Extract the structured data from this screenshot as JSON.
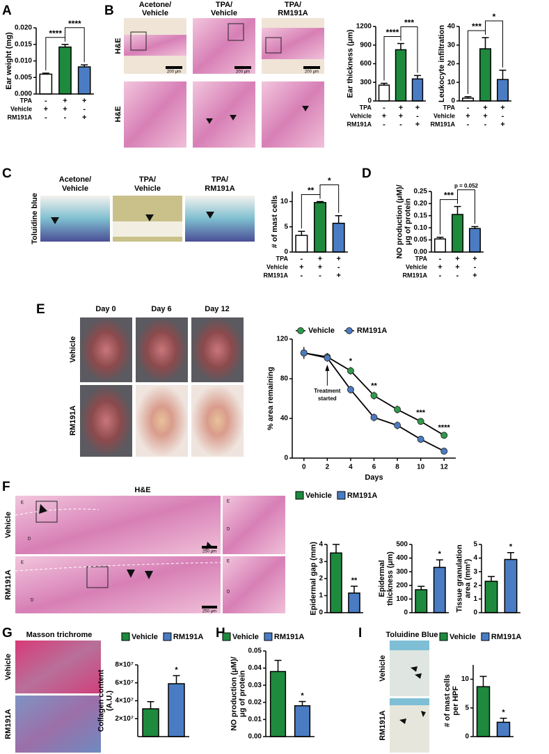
{
  "figure": {
    "panel_letters": [
      "A",
      "B",
      "C",
      "D",
      "E",
      "F",
      "G",
      "H",
      "I"
    ],
    "image_panels": {
      "B": {
        "columns": [
          [
            "Acetone/",
            "Vehicle"
          ],
          [
            "TPA/",
            "Vehicle"
          ],
          [
            "TPA/",
            "RM191A"
          ]
        ],
        "rows": [
          "H&E",
          "H&E"
        ],
        "scale_bar": "200 μm"
      },
      "C": {
        "columns": [
          [
            "Acetone/",
            "Vehicle"
          ],
          [
            "TPA/",
            "Vehicle"
          ],
          [
            "TPA/",
            "RM191A"
          ]
        ],
        "rows": [
          "Toluidine blue"
        ]
      },
      "E": {
        "columns": [
          "Day 0",
          "Day 6",
          "Day 12"
        ],
        "rows": [
          "Vehicle",
          "RM191A"
        ]
      },
      "F": {
        "title": "H&E",
        "rows": [
          "Vehicle",
          "RM191A"
        ],
        "scale_bar": "250 μm",
        "layer_labels": [
          "E",
          "D"
        ]
      },
      "G": {
        "title": "Masson trichrome",
        "rows": [
          "Vehicle",
          "RM191A"
        ]
      },
      "I": {
        "title": "Toluidine Blue",
        "rows": [
          "Vehicle",
          "RM191A"
        ]
      }
    }
  },
  "chart_data": [
    {
      "type": "bar",
      "ylabel": [
        "Ear weight (mg)"
      ],
      "ylim": [
        0,
        0.02
      ],
      "yticks": [
        {
          "value": 0,
          "label": "0.000"
        },
        {
          "value": 0.005,
          "label": "0.005"
        },
        {
          "value": 0.01,
          "label": "0.010"
        },
        {
          "value": 0.015,
          "label": "0.015"
        },
        {
          "value": 0.02,
          "label": "0.020"
        }
      ],
      "values": [
        0.006,
        0.0142,
        0.0082
      ],
      "errors": [
        0.0003,
        0.0008,
        0.0006
      ],
      "colors": [
        "#ffffff",
        "#1e8a3e",
        "#4a7cc4"
      ],
      "annotations": [
        "****",
        "****"
      ],
      "conditions": [
        {
          "label": "TPA",
          "signs": [
            "-",
            "+",
            "+"
          ]
        },
        {
          "label": "Vehicle",
          "signs": [
            "+",
            "+",
            "-"
          ]
        },
        {
          "label": "RM191A",
          "signs": [
            "-",
            "-",
            "+"
          ]
        }
      ]
    },
    {
      "type": "bar",
      "ylabel": [
        "Ear thickness (μm)"
      ],
      "ylim": [
        0,
        1200
      ],
      "yticks": [
        0,
        300,
        600,
        900,
        1200
      ],
      "values": [
        255,
        825,
        355
      ],
      "errors": [
        30,
        100,
        55
      ],
      "colors": [
        "#ffffff",
        "#1e8a3e",
        "#4a7cc4"
      ],
      "annotations": [
        "****",
        "***"
      ],
      "conditions": [
        {
          "label": "TPA",
          "signs": [
            "-",
            "+",
            "+"
          ]
        },
        {
          "label": "Vehicle",
          "signs": [
            "+",
            "+",
            "-"
          ]
        },
        {
          "label": "RM191A",
          "signs": [
            "-",
            "-",
            "+"
          ]
        }
      ]
    },
    {
      "type": "bar",
      "ylabel": [
        "Leukocyte infiltration"
      ],
      "ylim": [
        0,
        40
      ],
      "yticks": [
        0,
        10,
        20,
        30,
        40
      ],
      "values": [
        1.5,
        28,
        11.5
      ],
      "errors": [
        0.8,
        6,
        5
      ],
      "colors": [
        "#ffffff",
        "#1e8a3e",
        "#4a7cc4"
      ],
      "annotations": [
        "***",
        "*"
      ],
      "conditions": [
        {
          "label": "TPA",
          "signs": [
            "-",
            "+",
            "+"
          ]
        },
        {
          "label": "Vehicle",
          "signs": [
            "+",
            "+",
            "-"
          ]
        },
        {
          "label": "RM191A",
          "signs": [
            "-",
            "-",
            "+"
          ]
        }
      ]
    },
    {
      "type": "bar",
      "ylabel": [
        "# of mast cells"
      ],
      "ylim": [
        0,
        12
      ],
      "yticks": [
        0,
        5,
        10
      ],
      "values": [
        3.3,
        9.8,
        5.7
      ],
      "errors": [
        0.8,
        0.2,
        1.5
      ],
      "colors": [
        "#ffffff",
        "#1e8a3e",
        "#4a7cc4"
      ],
      "annotations": [
        "**",
        "*"
      ],
      "conditions": [
        {
          "label": "TPA",
          "signs": [
            "-",
            "+",
            "+"
          ]
        },
        {
          "label": "Vehicle",
          "signs": [
            "+",
            "+",
            "-"
          ]
        },
        {
          "label": "RM191A",
          "signs": [
            "-",
            "-",
            "+"
          ]
        }
      ]
    },
    {
      "type": "bar",
      "ylabel": [
        "NO production (μM)/",
        "μg of protein"
      ],
      "ylim": [
        0,
        0.25
      ],
      "yticks": [
        {
          "value": 0,
          "label": "0.00"
        },
        {
          "value": 0.05,
          "label": "0.05"
        },
        {
          "value": 0.1,
          "label": "0.10"
        },
        {
          "value": 0.15,
          "label": "0.15"
        },
        {
          "value": 0.2,
          "label": "0.20"
        },
        {
          "value": 0.25,
          "label": "0.25"
        }
      ],
      "values": [
        0.054,
        0.155,
        0.097
      ],
      "errors": [
        0.007,
        0.033,
        0.008
      ],
      "colors": [
        "#ffffff",
        "#1e8a3e",
        "#4a7cc4"
      ],
      "annotations": [
        "***",
        "p = 0.052"
      ],
      "conditions": [
        {
          "label": "TPA",
          "signs": [
            "-",
            "+",
            "+"
          ]
        },
        {
          "label": "Vehicle",
          "signs": [
            "+",
            "+",
            "-"
          ]
        },
        {
          "label": "RM191A",
          "signs": [
            "-",
            "-",
            "+"
          ]
        }
      ]
    },
    {
      "type": "line",
      "xlabel": "Days",
      "ylabel": [
        "% area remaining"
      ],
      "x": [
        0,
        2,
        4,
        6,
        8,
        10,
        12
      ],
      "xlim": [
        -1,
        13
      ],
      "xticks": [
        0,
        2,
        4,
        6,
        8,
        10,
        12
      ],
      "ylim": [
        0,
        120
      ],
      "yticks": [
        0,
        40,
        80,
        120
      ],
      "series": [
        {
          "name": "Vehicle",
          "color": "#2f9a4c",
          "values": [
            106,
            102,
            88,
            63,
            49,
            37,
            23
          ],
          "errors": [
            6,
            4,
            4,
            4,
            4,
            3,
            2
          ]
        },
        {
          "name": "RM191A",
          "color": "#4a7cc4",
          "values": [
            106,
            101,
            69,
            41,
            33,
            19,
            7
          ],
          "errors": [
            6,
            4,
            4,
            4,
            4,
            3,
            2
          ]
        }
      ],
      "annotations": [
        {
          "x": 4,
          "text": "*"
        },
        {
          "x": 6,
          "text": "**"
        },
        {
          "x": 10,
          "text": "***"
        },
        {
          "x": 12,
          "text": "****"
        }
      ],
      "callout": {
        "x": 2,
        "lines": [
          "Treatment",
          "started"
        ]
      }
    },
    {
      "type": "bar",
      "ylabel": [
        "Epidermal gap (mm)"
      ],
      "ylim": [
        0,
        4
      ],
      "yticks": [
        0,
        1,
        2,
        3,
        4
      ],
      "values": [
        3.5,
        1.15
      ],
      "errors": [
        0.5,
        0.4
      ],
      "colors": [
        "#1e8a3e",
        "#4a7cc4"
      ],
      "annotations": [
        "**"
      ],
      "legend": [
        {
          "name": "Vehicle",
          "color": "#1e8a3e"
        },
        {
          "name": "RM191A",
          "color": "#4a7cc4"
        }
      ]
    },
    {
      "type": "bar",
      "ylabel": [
        "Epidermal",
        "thickness (μm)"
      ],
      "ylim": [
        0,
        500
      ],
      "yticks": [
        0,
        100,
        200,
        300,
        400,
        500
      ],
      "values": [
        168,
        332
      ],
      "errors": [
        25,
        55
      ],
      "colors": [
        "#1e8a3e",
        "#4a7cc4"
      ],
      "annotations": [
        "*"
      ]
    },
    {
      "type": "bar",
      "ylabel": [
        "Tissue granulation",
        "area (mm²)"
      ],
      "ylim": [
        0,
        5
      ],
      "yticks": [
        0,
        1,
        2,
        3,
        4,
        5
      ],
      "values": [
        2.3,
        3.9
      ],
      "errors": [
        0.35,
        0.5
      ],
      "colors": [
        "#1e8a3e",
        "#4a7cc4"
      ],
      "annotations": [
        "*"
      ]
    },
    {
      "type": "bar",
      "ylabel": [
        "Collagen content",
        "(A.U.)"
      ],
      "ylim": [
        0,
        80000000
      ],
      "yticks": [
        {
          "value": 20000000,
          "label": "2×10⁷"
        },
        {
          "value": 40000000,
          "label": "4×10⁷"
        },
        {
          "value": 60000000,
          "label": "6×10⁷"
        },
        {
          "value": 80000000,
          "label": "8×10⁷"
        }
      ],
      "values": [
        31000000,
        59000000
      ],
      "errors": [
        8000000,
        9000000
      ],
      "colors": [
        "#1e8a3e",
        "#4a7cc4"
      ],
      "annotations": [
        "*"
      ],
      "legend": [
        {
          "name": "Vehicle",
          "color": "#1e8a3e"
        },
        {
          "name": "RM191A",
          "color": "#4a7cc4"
        }
      ]
    },
    {
      "type": "bar",
      "ylabel": [
        "NO production (μM)/",
        "μg of protein"
      ],
      "ylim": [
        0,
        0.05
      ],
      "yticks": [
        {
          "value": 0,
          "label": "0.00"
        },
        {
          "value": 0.01,
          "label": "0.01"
        },
        {
          "value": 0.02,
          "label": "0.02"
        },
        {
          "value": 0.03,
          "label": "0.03"
        },
        {
          "value": 0.04,
          "label": "0.04"
        },
        {
          "value": 0.05,
          "label": "0.05"
        }
      ],
      "values": [
        0.038,
        0.018
      ],
      "errors": [
        0.0065,
        0.0025
      ],
      "colors": [
        "#1e8a3e",
        "#4a7cc4"
      ],
      "annotations": [
        "*"
      ],
      "legend": [
        {
          "name": "Vehicle",
          "color": "#1e8a3e"
        },
        {
          "name": "RM191A",
          "color": "#4a7cc4"
        }
      ]
    },
    {
      "type": "bar",
      "ylabel": [
        "# of mast cells",
        "per HPF"
      ],
      "ylim": [
        0,
        12.5
      ],
      "yticks": [
        0,
        5,
        10
      ],
      "values": [
        8.7,
        2.5
      ],
      "errors": [
        1.8,
        0.7
      ],
      "colors": [
        "#1e8a3e",
        "#4a7cc4"
      ],
      "annotations": [
        "*"
      ],
      "legend": [
        {
          "name": "Vehicle",
          "color": "#1e8a3e"
        },
        {
          "name": "RM191A",
          "color": "#4a7cc4"
        }
      ]
    }
  ]
}
